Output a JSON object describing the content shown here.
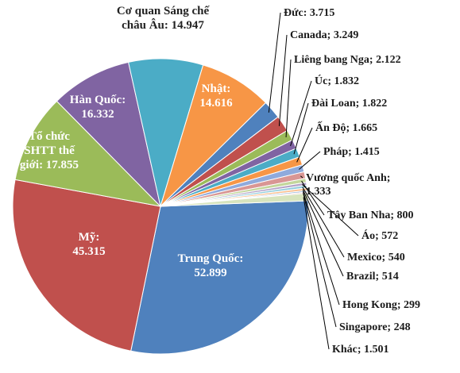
{
  "chart_data": {
    "type": "pie",
    "title": "",
    "slices": [
      {
        "label": "Trung Quốc",
        "value": 52899,
        "display": "Trung Quốc:\n52.899",
        "color": "#4f81bd"
      },
      {
        "label": "Mỹ",
        "value": 45315,
        "display": "Mỹ:\n45.315",
        "color": "#c0504d"
      },
      {
        "label": "Tổ chức SHTT thế giới",
        "value": 17855,
        "display": "Tổ chức\nSHTT thế\ngiới: 17.855",
        "color": "#9bbb59"
      },
      {
        "label": "Hàn Quốc",
        "value": 16332,
        "display": "Hàn Quốc:\n16.332",
        "color": "#8064a2"
      },
      {
        "label": "Cơ quan Sáng chế châu Âu",
        "value": 14947,
        "display": "Cơ quan Sáng chế\nchâu Âu: 14.947",
        "color": "#4bacc6"
      },
      {
        "label": "Nhật",
        "value": 14616,
        "display": "Nhật:\n14.616",
        "color": "#f79646"
      },
      {
        "label": "Đức",
        "value": 3715,
        "display": "Đức: 3.715",
        "color": "#4f81bd"
      },
      {
        "label": "Canada",
        "value": 3249,
        "display": "Canada; 3.249",
        "color": "#c0504d"
      },
      {
        "label": "Liêng bang Nga",
        "value": 2122,
        "display": "Liêng bang Nga; 2.122",
        "color": "#9bbb59"
      },
      {
        "label": "Úc",
        "value": 1832,
        "display": "Úc; 1.832",
        "color": "#8064a2"
      },
      {
        "label": "Đài Loan",
        "value": 1822,
        "display": "Đài Loan; 1.822",
        "color": "#4bacc6"
      },
      {
        "label": "Ấn Độ",
        "value": 1665,
        "display": "Ấn Độ; 1.665",
        "color": "#f79646"
      },
      {
        "label": "Pháp",
        "value": 1415,
        "display": "Pháp; 1.415",
        "color": "#8faadc"
      },
      {
        "label": "Vương quốc Anh",
        "value": 1333,
        "display": "Vương quốc Anh;\n1.333",
        "color": "#d99694"
      },
      {
        "label": "Tây Ban Nha",
        "value": 800,
        "display": "Tây Ban Nha; 800",
        "color": "#c3d69b"
      },
      {
        "label": "Áo",
        "value": 572,
        "display": "Áo; 572",
        "color": "#b3a2c7"
      },
      {
        "label": "Mexico",
        "value": 540,
        "display": "Mexico; 540",
        "color": "#93cddd"
      },
      {
        "label": "Brazil",
        "value": 514,
        "display": "Brazil; 514",
        "color": "#fac090"
      },
      {
        "label": "Hong Kong",
        "value": 299,
        "display": "Hong Kong; 299",
        "color": "#95b3d7"
      },
      {
        "label": "Singapore",
        "value": 248,
        "display": "Singapore; 248",
        "color": "#e6b9b8"
      },
      {
        "label": "Khác",
        "value": 1501,
        "display": "Khác; 1.501",
        "color": "#d7e4bd"
      }
    ]
  }
}
